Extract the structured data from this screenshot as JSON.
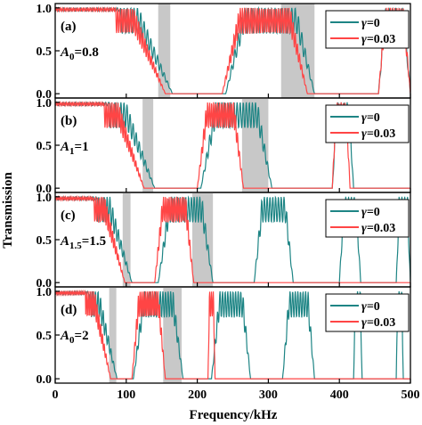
{
  "chart_data": {
    "type": "line",
    "xlabel": "Frequency/kHz",
    "ylabel": "Transmission",
    "xlim": [
      0,
      500
    ],
    "ylim": [
      -0.05,
      1.05
    ],
    "xticks": [
      0,
      100,
      200,
      300,
      400,
      500
    ],
    "yticks": [
      0.0,
      0.5,
      1.0
    ],
    "xtick_labels": [
      "0",
      "100",
      "200",
      "300",
      "400",
      "500"
    ],
    "ytick_labels": [
      "0.0",
      "0.5",
      "1.0"
    ],
    "grid": false,
    "legend_position": "top-right",
    "colors": {
      "gamma0": "#1e8585",
      "gamma003": "#ff4545",
      "shade": "#c8c8c8"
    },
    "legend": [
      {
        "sym": "γ",
        "eq": "=0",
        "color": "#1e8585"
      },
      {
        "sym": "γ",
        "eq": "=0.03",
        "color": "#ff4545"
      }
    ],
    "panels": [
      {
        "letter": "(a)",
        "a_sym": "A",
        "a_sub": "0",
        "a_val": "=0.8",
        "shaded_ranges": [
          [
            145,
            162
          ],
          [
            318,
            365
          ]
        ],
        "gamma0_bands": [
          [
            0,
            165
          ],
          [
            240,
            365
          ],
          [
            455,
            500
          ]
        ],
        "gamma003_bands": [
          [
            0,
            155
          ],
          [
            235,
            355
          ],
          [
            455,
            500
          ]
        ]
      },
      {
        "letter": "(b)",
        "a_sym": "A",
        "a_sub": "1",
        "a_val": "=1",
        "shaded_ranges": [
          [
            123,
            138
          ],
          [
            263,
            300
          ]
        ],
        "gamma0_bands": [
          [
            0,
            140
          ],
          [
            205,
            305
          ],
          [
            390,
            420
          ]
        ],
        "gamma003_bands": [
          [
            0,
            125
          ],
          [
            200,
            265
          ],
          [
            390,
            415
          ]
        ]
      },
      {
        "letter": "(c)",
        "a_sym": "A",
        "a_sub": "1.5",
        "a_val": "=1.5",
        "shaded_ranges": [
          [
            95,
            106
          ],
          [
            193,
            222
          ]
        ],
        "gamma0_bands": [
          [
            0,
            108
          ],
          [
            145,
            222
          ],
          [
            280,
            335
          ],
          [
            400,
            430
          ],
          [
            480,
            500
          ]
        ],
        "gamma003_bands": [
          [
            0,
            98
          ],
          [
            140,
            195
          ]
        ]
      },
      {
        "letter": "(d)",
        "a_sym": "A",
        "a_sub": "0",
        "a_val": "=2",
        "shaded_ranges": [
          [
            76,
            86
          ],
          [
            152,
            178
          ]
        ],
        "gamma0_bands": [
          [
            0,
            87
          ],
          [
            110,
            180
          ],
          [
            220,
            275
          ],
          [
            320,
            365
          ],
          [
            420,
            432
          ],
          [
            480,
            490
          ]
        ],
        "gamma003_bands": [
          [
            0,
            78
          ],
          [
            108,
            155
          ],
          [
            215,
            225
          ]
        ]
      }
    ]
  }
}
